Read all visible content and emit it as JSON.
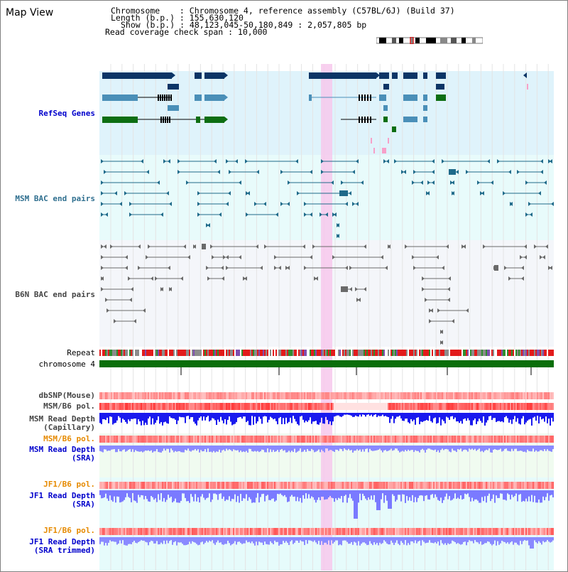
{
  "header": {
    "title": "Map View",
    "chromosome_line": "Chromosome    : Chromosome 4, reference assembly (C57BL/6J) (Build 37)",
    "length_line": "Length (b.p.) : 155,630,120",
    "show_line": "Show (b.p.) : 48,123,045-50,180,849 : 2,057,805 bp",
    "coverage_line": "Read coverage check span : 10,000"
  },
  "tracks": {
    "refseq": "RefSeq Genes",
    "msm_bac": "MSM BAC end pairs",
    "b6n_bac": "B6N BAC end pairs",
    "repeat": "Repeat",
    "chromosome": "chromosome 4",
    "dbsnp": "dbSNP(Mouse)",
    "msm_b6_pol": "MSM/B6 pol.",
    "msm_read_cap_1": "MSM Read Depth",
    "msm_read_cap_2": "(Capillary)",
    "msm_b6_pol_2": "MSM/B6 pol.",
    "msm_read_sra_1": "MSM Read Depth",
    "msm_read_sra_2": "(SRA)",
    "jf1_b6_pol": "JF1/B6 pol.",
    "jf1_read_sra_1": "JF1 Read Depth",
    "jf1_read_sra_2": "(SRA)",
    "jf1_b6_pol_2": "JF1/B6 pol.",
    "jf1_read_trim_1": "JF1 Read Depth",
    "jf1_read_trim_2": "(SRA trimmed)"
  },
  "axis": {
    "ticks": [
      "48400000",
      "48800000",
      "49200000",
      "49600000",
      "50000000"
    ]
  },
  "colors": {
    "refseq_bg": "#dff3fb",
    "bac_bg": "#e8fbfb",
    "b6n_bg": "#f4f6fa",
    "highlight": "#f7c8ec",
    "gene_dark": "#0c3566",
    "gene_mid": "#4a8fb8",
    "gene_green": "#0d6e12",
    "read_blue": "#1a1aee",
    "read_violet": "#7a7aff"
  }
}
